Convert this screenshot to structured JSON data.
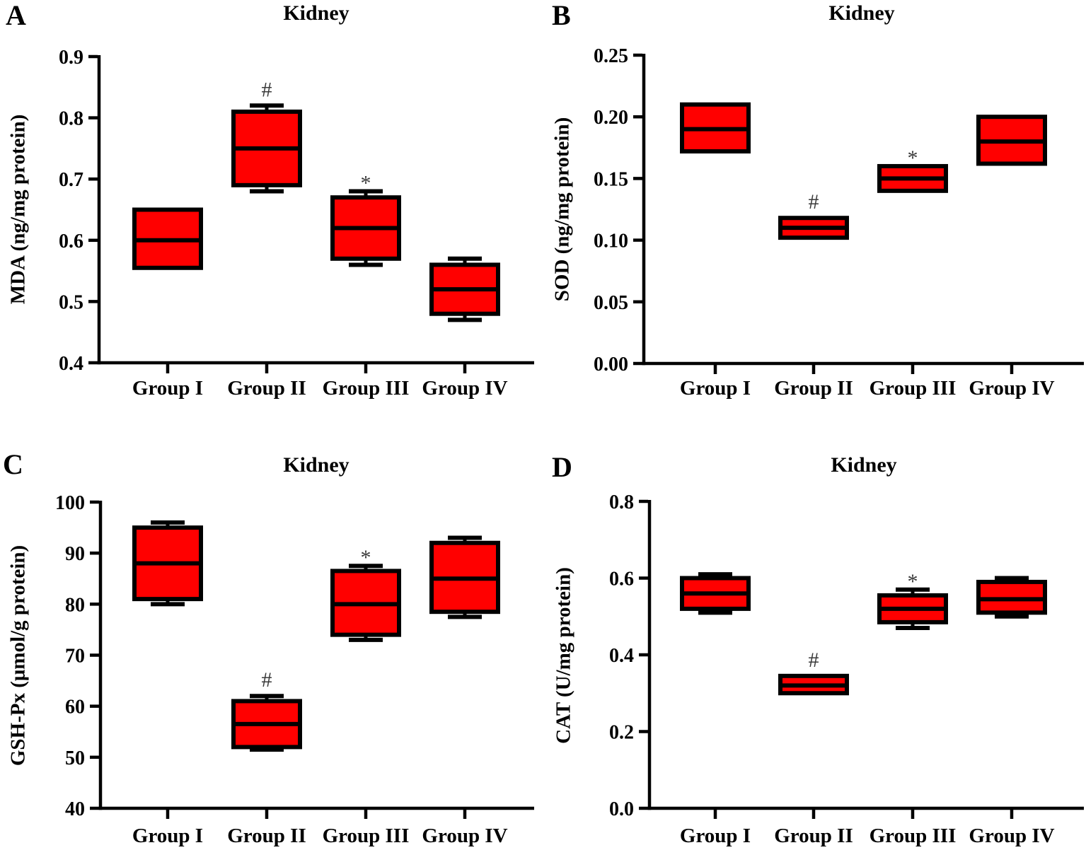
{
  "colors": {
    "box_fill": "#ff0000",
    "line": "#000000",
    "annotation": "#3a3a3a"
  },
  "chart_data": [
    {
      "id": "A",
      "panel_letter": "A",
      "type": "box",
      "title": "Kidney",
      "ylabel": "MDA (ng/mg protein)",
      "ylim": [
        0.4,
        0.9
      ],
      "ytick_values": [
        0.4,
        0.5,
        0.6,
        0.7,
        0.8,
        0.9
      ],
      "ytick_labels": [
        "0.4",
        "0.5",
        "0.6",
        "0.7",
        "0.8",
        "0.9"
      ],
      "categories": [
        "Group I",
        "Group II",
        "Group III",
        "Group IV"
      ],
      "boxes": [
        {
          "group": "Group I",
          "whisker_low": null,
          "q1": 0.555,
          "median": 0.6,
          "q3": 0.65,
          "whisker_high": null,
          "annotation": ""
        },
        {
          "group": "Group II",
          "whisker_low": 0.68,
          "q1": 0.69,
          "median": 0.75,
          "q3": 0.81,
          "whisker_high": 0.82,
          "annotation": "#"
        },
        {
          "group": "Group III",
          "whisker_low": 0.56,
          "q1": 0.57,
          "median": 0.62,
          "q3": 0.67,
          "whisker_high": 0.68,
          "annotation": "*"
        },
        {
          "group": "Group IV",
          "whisker_low": 0.47,
          "q1": 0.48,
          "median": 0.52,
          "q3": 0.56,
          "whisker_high": 0.57,
          "annotation": ""
        }
      ]
    },
    {
      "id": "B",
      "panel_letter": "B",
      "type": "box",
      "title": "Kidney",
      "ylabel": "SOD (ng/mg protein)",
      "ylim": [
        0.0,
        0.25
      ],
      "ytick_values": [
        0.0,
        0.05,
        0.1,
        0.15,
        0.2,
        0.25
      ],
      "ytick_labels": [
        "0.00",
        "0.05",
        "0.10",
        "0.15",
        "0.20",
        "0.25"
      ],
      "categories": [
        "Group I",
        "Group II",
        "Group III",
        "Group IV"
      ],
      "boxes": [
        {
          "group": "Group I",
          "whisker_low": null,
          "q1": 0.172,
          "median": 0.19,
          "q3": 0.21,
          "whisker_high": null,
          "annotation": ""
        },
        {
          "group": "Group II",
          "whisker_low": null,
          "q1": 0.102,
          "median": 0.11,
          "q3": 0.118,
          "whisker_high": null,
          "annotation": "#"
        },
        {
          "group": "Group III",
          "whisker_low": null,
          "q1": 0.14,
          "median": 0.15,
          "q3": 0.16,
          "whisker_high": null,
          "annotation": "*"
        },
        {
          "group": "Group IV",
          "whisker_low": null,
          "q1": 0.162,
          "median": 0.18,
          "q3": 0.2,
          "whisker_high": null,
          "annotation": ""
        }
      ]
    },
    {
      "id": "C",
      "panel_letter": "C",
      "type": "box",
      "title": "Kidney",
      "ylabel": "GSH-Px (μmol/g protein)",
      "ylim": [
        40,
        100
      ],
      "ytick_values": [
        40,
        50,
        60,
        70,
        80,
        90,
        100
      ],
      "ytick_labels": [
        "40",
        "50",
        "60",
        "70",
        "80",
        "90",
        "100"
      ],
      "categories": [
        "Group I",
        "Group II",
        "Group III",
        "Group IV"
      ],
      "boxes": [
        {
          "group": "Group I",
          "whisker_low": 80.0,
          "q1": 81.0,
          "median": 88.0,
          "q3": 95.0,
          "whisker_high": 96.0,
          "annotation": ""
        },
        {
          "group": "Group II",
          "whisker_low": 51.5,
          "q1": 52.0,
          "median": 56.5,
          "q3": 61.0,
          "whisker_high": 62.0,
          "annotation": "#"
        },
        {
          "group": "Group III",
          "whisker_low": 73.0,
          "q1": 74.0,
          "median": 80.0,
          "q3": 86.5,
          "whisker_high": 87.5,
          "annotation": "*"
        },
        {
          "group": "Group IV",
          "whisker_low": 77.5,
          "q1": 78.5,
          "median": 85.0,
          "q3": 92.0,
          "whisker_high": 93.0,
          "annotation": ""
        }
      ]
    },
    {
      "id": "D",
      "panel_letter": "D",
      "type": "box",
      "title": "Kidney",
      "ylabel": "CAT (U/mg protein)",
      "ylim": [
        0.0,
        0.8
      ],
      "ytick_values": [
        0.0,
        0.2,
        0.4,
        0.6,
        0.8
      ],
      "ytick_labels": [
        "0.0",
        "0.2",
        "0.4",
        "0.6",
        "0.8"
      ],
      "categories": [
        "Group I",
        "Group II",
        "Group III",
        "Group IV"
      ],
      "boxes": [
        {
          "group": "Group I",
          "whisker_low": 0.51,
          "q1": 0.52,
          "median": 0.56,
          "q3": 0.6,
          "whisker_high": 0.61,
          "annotation": ""
        },
        {
          "group": "Group II",
          "whisker_low": null,
          "q1": 0.3,
          "median": 0.32,
          "q3": 0.345,
          "whisker_high": null,
          "annotation": "#"
        },
        {
          "group": "Group III",
          "whisker_low": 0.47,
          "q1": 0.485,
          "median": 0.52,
          "q3": 0.555,
          "whisker_high": 0.57,
          "annotation": "*"
        },
        {
          "group": "Group IV",
          "whisker_low": 0.5,
          "q1": 0.51,
          "median": 0.545,
          "q3": 0.59,
          "whisker_high": 0.6,
          "annotation": ""
        }
      ]
    }
  ]
}
